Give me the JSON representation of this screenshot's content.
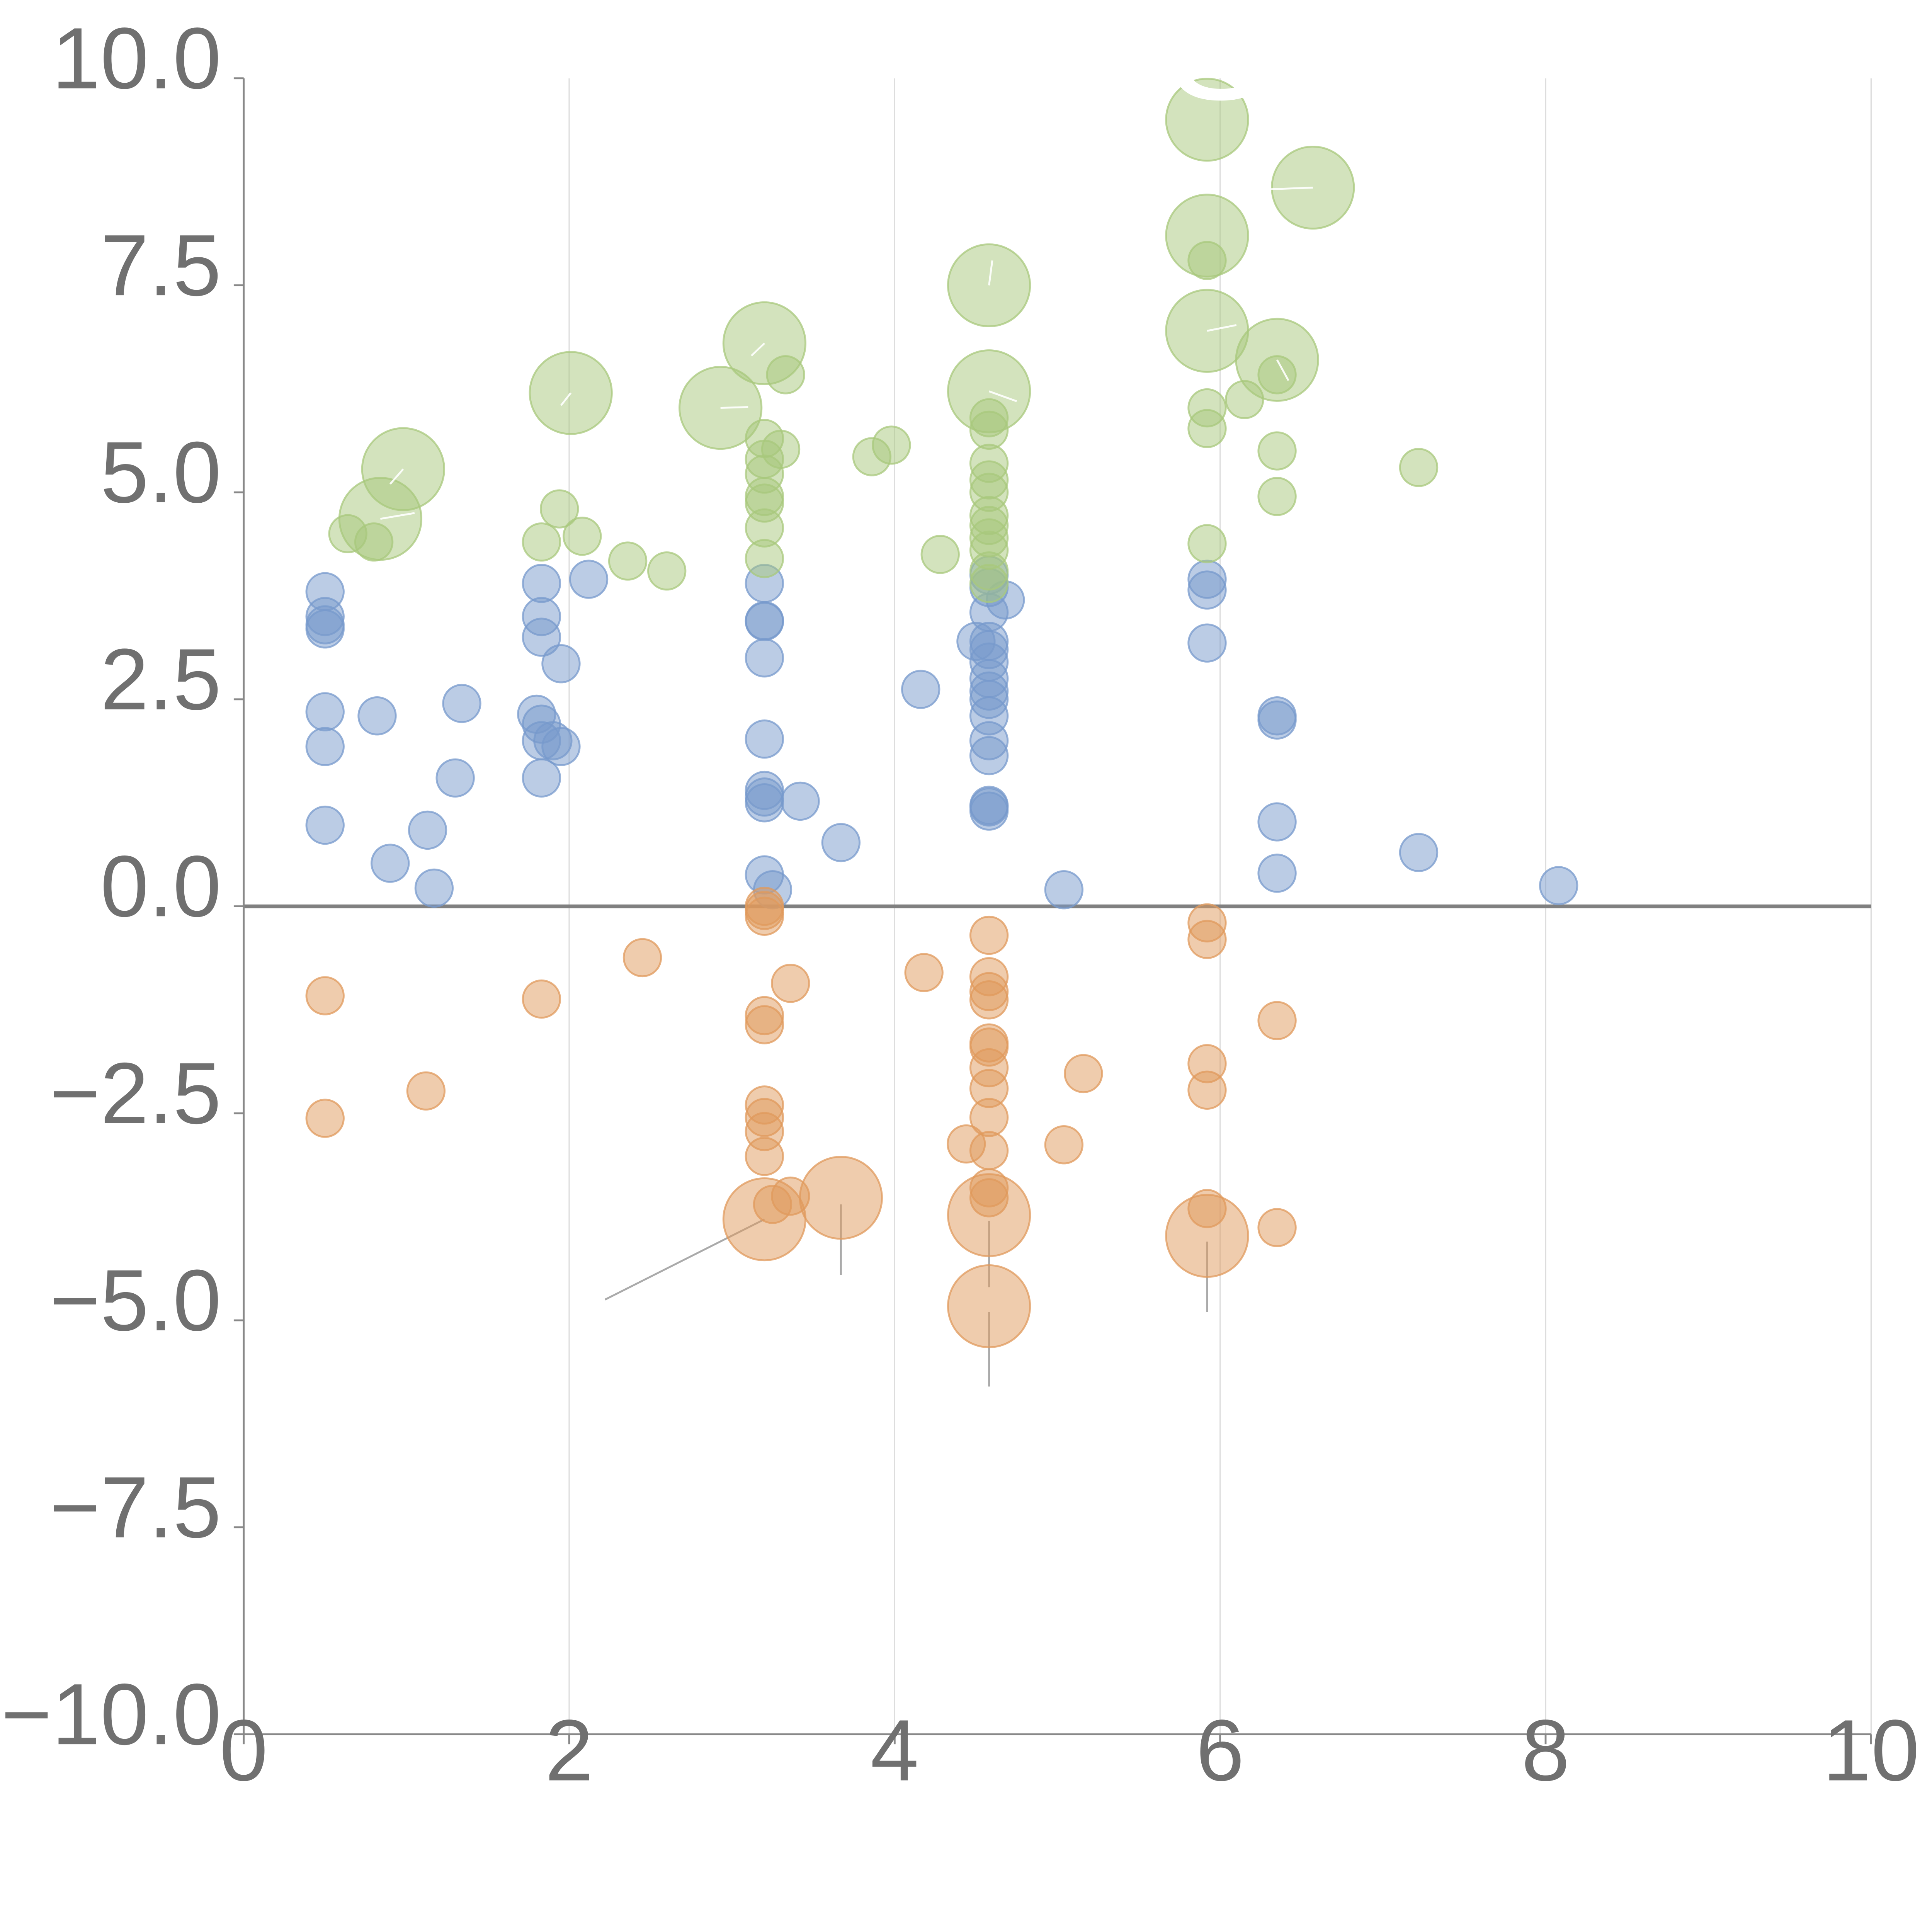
{
  "chart_data": {
    "type": "scatter",
    "title": "",
    "xlabel": "",
    "ylabel": "",
    "xlim": [
      0,
      10
    ],
    "ylim": [
      -10,
      10
    ],
    "x_ticks": [
      "0",
      "2",
      "4",
      "6",
      "8",
      "10"
    ],
    "y_ticks": [
      "10.0",
      "7.5",
      "5.0",
      "2.5",
      "0.0",
      "−2.5",
      "−5.0",
      "−7.5",
      "−10.0"
    ],
    "x_tick_values": [
      0,
      2,
      4,
      6,
      8,
      10
    ],
    "y_tick_values": [
      10,
      7.5,
      5,
      2.5,
      0,
      -2.5,
      -5,
      -7.5,
      -10
    ],
    "grid": "vertical gridlines at x ticks",
    "reference_line": {
      "y": 0,
      "color": "#808080"
    },
    "series": [
      {
        "color": "#7799cc",
        "points": [
          {
            "x": 0.5,
            "y": 3.8
          },
          {
            "x": 0.5,
            "y": 3.5
          },
          {
            "x": 0.5,
            "y": 3.4
          },
          {
            "x": 0.5,
            "y": 3.35
          },
          {
            "x": 0.5,
            "y": 2.35
          },
          {
            "x": 0.5,
            "y": 1.93
          },
          {
            "x": 0.5,
            "y": 0.98
          },
          {
            "x": 0.82,
            "y": 2.3
          },
          {
            "x": 0.9,
            "y": 0.52
          },
          {
            "x": 1.13,
            "y": 0.92
          },
          {
            "x": 1.17,
            "y": 0.22
          },
          {
            "x": 1.3,
            "y": 1.55
          },
          {
            "x": 1.34,
            "y": 2.45
          },
          {
            "x": 1.8,
            "y": 2.32
          },
          {
            "x": 1.83,
            "y": 3.9
          },
          {
            "x": 1.83,
            "y": 3.5
          },
          {
            "x": 1.83,
            "y": 3.25
          },
          {
            "x": 1.83,
            "y": 2.2
          },
          {
            "x": 1.83,
            "y": 2.0
          },
          {
            "x": 1.83,
            "y": 1.55
          },
          {
            "x": 1.9,
            "y": 2.0
          },
          {
            "x": 1.95,
            "y": 1.93
          },
          {
            "x": 1.95,
            "y": 2.93
          },
          {
            "x": 2.12,
            "y": 3.95
          },
          {
            "x": 3.2,
            "y": 3.9
          },
          {
            "x": 3.2,
            "y": 3.45
          },
          {
            "x": 3.2,
            "y": 3.44
          },
          {
            "x": 3.2,
            "y": 3.0
          },
          {
            "x": 3.2,
            "y": 2.02
          },
          {
            "x": 3.2,
            "y": 1.4
          },
          {
            "x": 3.2,
            "y": 1.32
          },
          {
            "x": 3.2,
            "y": 1.25
          },
          {
            "x": 3.2,
            "y": 0.38
          },
          {
            "x": 3.25,
            "y": 0.2
          },
          {
            "x": 3.42,
            "y": 1.27
          },
          {
            "x": 3.67,
            "y": 0.77
          },
          {
            "x": 4.16,
            "y": 2.62
          },
          {
            "x": 4.5,
            "y": 3.2
          },
          {
            "x": 4.58,
            "y": 4.0
          },
          {
            "x": 4.58,
            "y": 3.85
          },
          {
            "x": 4.58,
            "y": 3.55
          },
          {
            "x": 4.58,
            "y": 3.2
          },
          {
            "x": 4.58,
            "y": 3.1
          },
          {
            "x": 4.58,
            "y": 2.95
          },
          {
            "x": 4.58,
            "y": 2.75
          },
          {
            "x": 4.58,
            "y": 2.6
          },
          {
            "x": 4.58,
            "y": 2.5
          },
          {
            "x": 4.58,
            "y": 2.3
          },
          {
            "x": 4.58,
            "y": 2.0
          },
          {
            "x": 4.58,
            "y": 1.82
          },
          {
            "x": 4.58,
            "y": 1.22
          },
          {
            "x": 4.58,
            "y": 1.2
          },
          {
            "x": 4.58,
            "y": 1.15
          },
          {
            "x": 4.68,
            "y": 3.7
          },
          {
            "x": 5.04,
            "y": 0.2
          },
          {
            "x": 5.92,
            "y": 3.95
          },
          {
            "x": 5.92,
            "y": 3.82
          },
          {
            "x": 5.92,
            "y": 3.18
          },
          {
            "x": 6.35,
            "y": 2.3
          },
          {
            "x": 6.35,
            "y": 2.25
          },
          {
            "x": 6.35,
            "y": 1.02
          },
          {
            "x": 6.35,
            "y": 0.4
          },
          {
            "x": 7.22,
            "y": 0.65
          },
          {
            "x": 8.08,
            "y": 0.25
          }
        ]
      },
      {
        "color": "#e09a5c",
        "points": [
          {
            "x": 0.5,
            "y": -1.08
          },
          {
            "x": 0.5,
            "y": -2.56
          },
          {
            "x": 1.12,
            "y": -2.23
          },
          {
            "x": 1.83,
            "y": -1.12
          },
          {
            "x": 2.45,
            "y": -0.62
          },
          {
            "x": 3.2,
            "y": 0.0
          },
          {
            "x": 3.2,
            "y": -0.05
          },
          {
            "x": 3.2,
            "y": -0.12
          },
          {
            "x": 3.2,
            "y": -1.32
          },
          {
            "x": 3.2,
            "y": -1.43
          },
          {
            "x": 3.2,
            "y": -2.4
          },
          {
            "x": 3.2,
            "y": -2.55
          },
          {
            "x": 3.2,
            "y": -2.72
          },
          {
            "x": 3.2,
            "y": -3.02
          },
          {
            "x": 3.2,
            "y": -3.78,
            "r": 2.2
          },
          {
            "x": 3.25,
            "y": -3.6
          },
          {
            "x": 3.36,
            "y": -0.93
          },
          {
            "x": 3.36,
            "y": -3.5
          },
          {
            "x": 3.67,
            "y": -3.52,
            "r": 2.2
          },
          {
            "x": 4.18,
            "y": -0.8
          },
          {
            "x": 4.44,
            "y": -2.87
          },
          {
            "x": 4.58,
            "y": -0.35
          },
          {
            "x": 4.58,
            "y": -0.85
          },
          {
            "x": 4.58,
            "y": -1.03
          },
          {
            "x": 4.58,
            "y": -1.13
          },
          {
            "x": 4.58,
            "y": -1.65
          },
          {
            "x": 4.58,
            "y": -1.7
          },
          {
            "x": 4.58,
            "y": -1.95
          },
          {
            "x": 4.58,
            "y": -2.2
          },
          {
            "x": 4.58,
            "y": -2.55
          },
          {
            "x": 4.58,
            "y": -2.95
          },
          {
            "x": 4.58,
            "y": -3.4
          },
          {
            "x": 4.58,
            "y": -3.52
          },
          {
            "x": 4.58,
            "y": -3.73,
            "r": 2.2
          },
          {
            "x": 4.58,
            "y": -4.83,
            "r": 2.2
          },
          {
            "x": 5.04,
            "y": -2.88
          },
          {
            "x": 5.16,
            "y": -2.02
          },
          {
            "x": 5.92,
            "y": -0.2
          },
          {
            "x": 5.92,
            "y": -0.4
          },
          {
            "x": 5.92,
            "y": -1.9
          },
          {
            "x": 5.92,
            "y": -2.22
          },
          {
            "x": 5.92,
            "y": -3.65
          },
          {
            "x": 5.92,
            "y": -3.98,
            "r": 2.2
          },
          {
            "x": 6.35,
            "y": -1.38
          },
          {
            "x": 6.35,
            "y": -3.88
          }
        ]
      },
      {
        "color": "#a8c87c",
        "points": [
          {
            "x": 0.64,
            "y": 4.5
          },
          {
            "x": 0.8,
            "y": 4.4
          },
          {
            "x": 0.84,
            "y": 4.68,
            "r": 2.2
          },
          {
            "x": 0.98,
            "y": 5.28,
            "r": 2.2
          },
          {
            "x": 1.83,
            "y": 4.4
          },
          {
            "x": 1.94,
            "y": 4.8
          },
          {
            "x": 2.01,
            "y": 6.2,
            "r": 2.2
          },
          {
            "x": 2.08,
            "y": 4.47
          },
          {
            "x": 2.36,
            "y": 4.17
          },
          {
            "x": 2.6,
            "y": 4.05
          },
          {
            "x": 2.93,
            "y": 6.02,
            "r": 2.2
          },
          {
            "x": 3.2,
            "y": 6.8,
            "r": 2.2
          },
          {
            "x": 3.2,
            "y": 5.65
          },
          {
            "x": 3.2,
            "y": 5.4
          },
          {
            "x": 3.2,
            "y": 5.22
          },
          {
            "x": 3.2,
            "y": 4.95
          },
          {
            "x": 3.2,
            "y": 4.87
          },
          {
            "x": 3.2,
            "y": 4.57
          },
          {
            "x": 3.2,
            "y": 4.2
          },
          {
            "x": 3.3,
            "y": 5.52
          },
          {
            "x": 3.33,
            "y": 6.42
          },
          {
            "x": 3.86,
            "y": 5.43
          },
          {
            "x": 3.98,
            "y": 5.57
          },
          {
            "x": 4.28,
            "y": 4.25
          },
          {
            "x": 4.58,
            "y": 7.5,
            "r": 2.2
          },
          {
            "x": 4.58,
            "y": 6.22,
            "r": 2.2
          },
          {
            "x": 4.58,
            "y": 5.9
          },
          {
            "x": 4.58,
            "y": 5.75
          },
          {
            "x": 4.58,
            "y": 5.35
          },
          {
            "x": 4.58,
            "y": 5.15
          },
          {
            "x": 4.58,
            "y": 5.0
          },
          {
            "x": 4.58,
            "y": 4.72
          },
          {
            "x": 4.58,
            "y": 4.6
          },
          {
            "x": 4.58,
            "y": 4.45
          },
          {
            "x": 4.58,
            "y": 4.3
          },
          {
            "x": 4.58,
            "y": 4.05
          },
          {
            "x": 4.58,
            "y": 3.9
          },
          {
            "x": 5.92,
            "y": 9.5,
            "r": 2.2
          },
          {
            "x": 5.92,
            "y": 8.1,
            "r": 2.2
          },
          {
            "x": 5.92,
            "y": 7.8
          },
          {
            "x": 5.92,
            "y": 6.95,
            "r": 2.2
          },
          {
            "x": 5.92,
            "y": 6.02
          },
          {
            "x": 5.92,
            "y": 5.77
          },
          {
            "x": 5.92,
            "y": 4.38
          },
          {
            "x": 6.15,
            "y": 6.12
          },
          {
            "x": 6.35,
            "y": 6.6,
            "r": 2.2
          },
          {
            "x": 6.35,
            "y": 6.42
          },
          {
            "x": 6.35,
            "y": 5.5
          },
          {
            "x": 6.35,
            "y": 4.95
          },
          {
            "x": 6.57,
            "y": 8.68,
            "r": 2.2
          },
          {
            "x": 7.22,
            "y": 5.3
          }
        ]
      }
    ],
    "text_labels": [
      {
        "text": "S",
        "x": 6.0,
        "y": 9.75
      }
    ]
  }
}
